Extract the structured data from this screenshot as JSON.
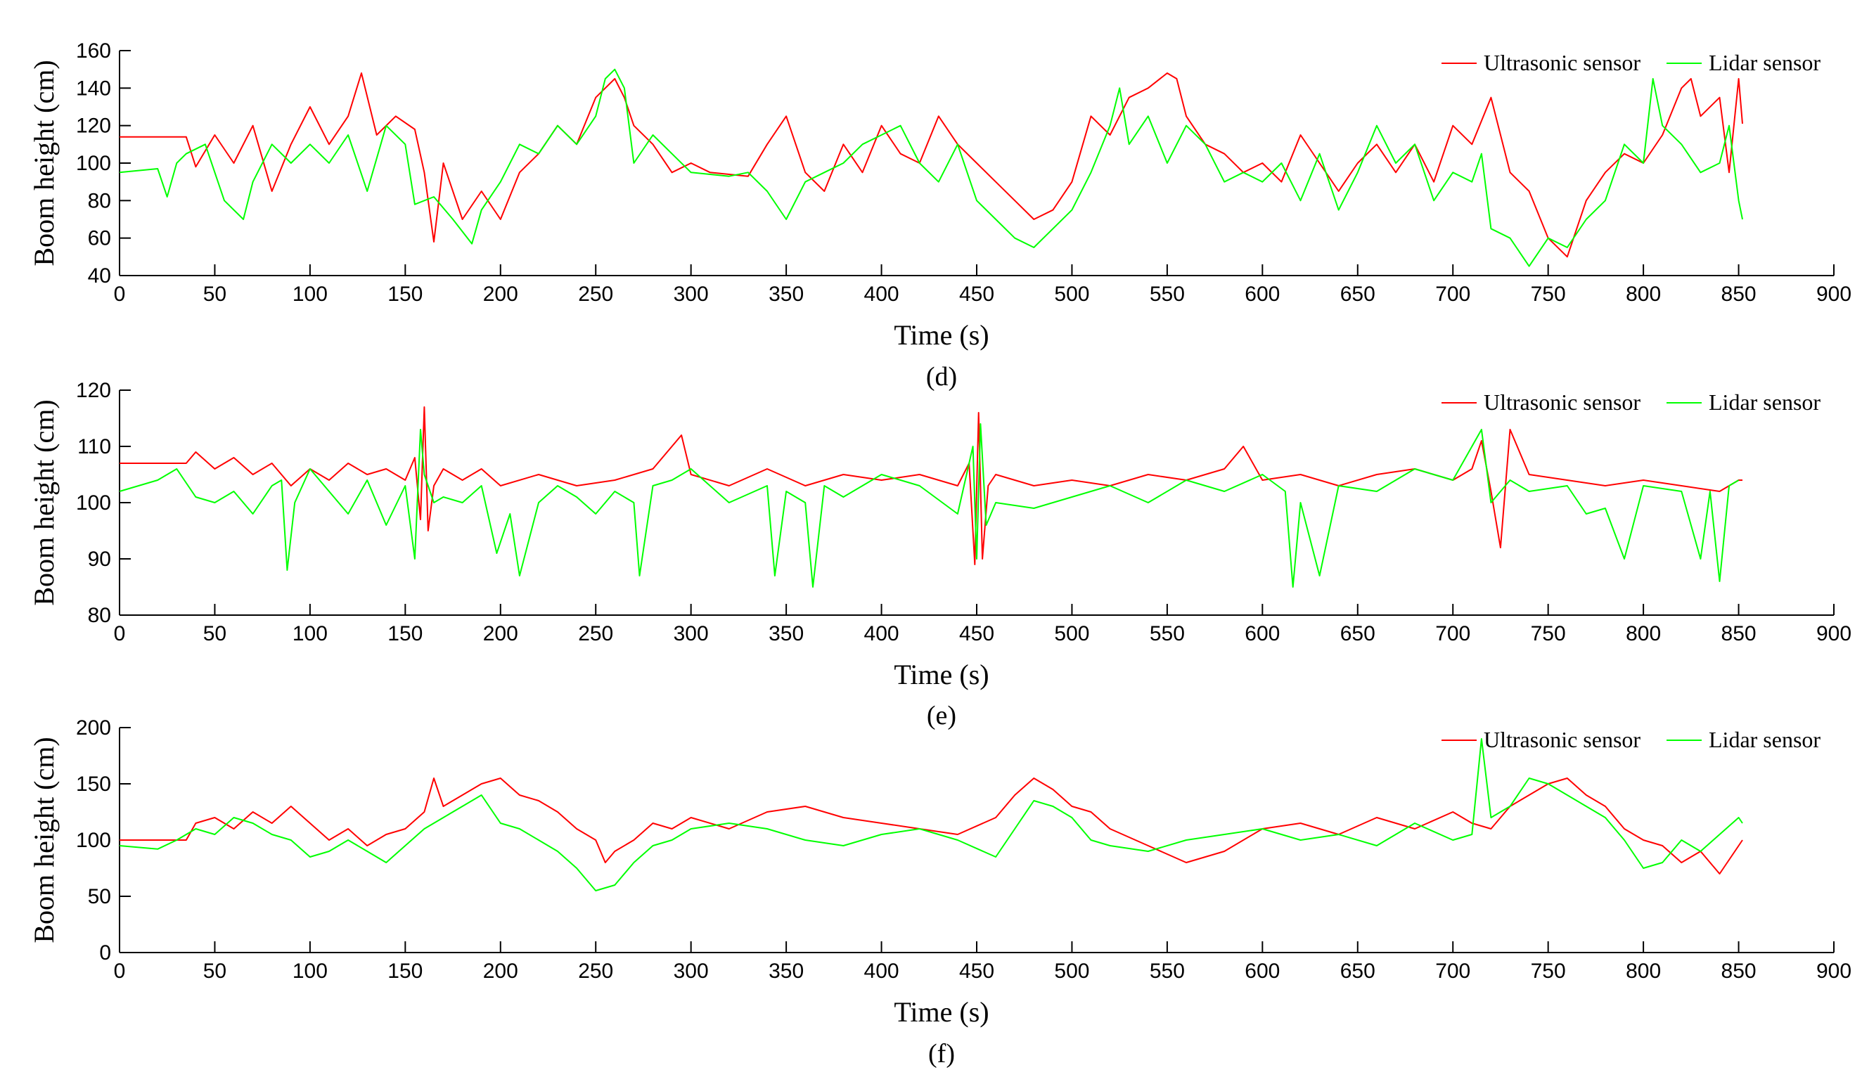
{
  "chart_data": [
    {
      "type": "line",
      "panel_label": "(d)",
      "xlabel": "Time (s)",
      "ylabel": "Boom height (cm)",
      "xlim": [
        0,
        900
      ],
      "ylim": [
        40,
        160
      ],
      "xticks": [
        0,
        50,
        100,
        150,
        200,
        250,
        300,
        350,
        400,
        450,
        500,
        550,
        600,
        650,
        700,
        750,
        800,
        850,
        900
      ],
      "yticks": [
        40,
        60,
        80,
        100,
        120,
        140,
        160
      ],
      "legend_position": "top-right",
      "series": [
        {
          "name": "Ultrasonic sensor",
          "color": "#ff0000",
          "x": [
            0,
            35,
            40,
            50,
            60,
            70,
            80,
            90,
            100,
            110,
            120,
            127,
            135,
            145,
            155,
            160,
            165,
            170,
            180,
            190,
            200,
            210,
            220,
            230,
            240,
            250,
            255,
            260,
            265,
            270,
            280,
            290,
            300,
            310,
            320,
            330,
            340,
            350,
            360,
            370,
            380,
            390,
            400,
            410,
            420,
            430,
            440,
            450,
            460,
            470,
            480,
            490,
            500,
            510,
            520,
            530,
            540,
            550,
            555,
            560,
            570,
            580,
            590,
            600,
            610,
            620,
            630,
            640,
            650,
            660,
            670,
            680,
            690,
            700,
            710,
            720,
            730,
            740,
            750,
            760,
            770,
            780,
            790,
            800,
            810,
            820,
            825,
            830,
            840,
            845,
            850,
            852
          ],
          "values": [
            114,
            114,
            98,
            115,
            100,
            120,
            85,
            110,
            130,
            110,
            125,
            148,
            115,
            125,
            118,
            95,
            58,
            100,
            70,
            85,
            70,
            95,
            105,
            120,
            110,
            135,
            140,
            145,
            135,
            120,
            110,
            95,
            100,
            95,
            94,
            93,
            110,
            125,
            95,
            85,
            110,
            95,
            120,
            105,
            100,
            125,
            110,
            100,
            90,
            80,
            70,
            75,
            90,
            125,
            115,
            135,
            140,
            148,
            145,
            125,
            110,
            105,
            95,
            100,
            90,
            115,
            100,
            85,
            100,
            110,
            95,
            110,
            90,
            120,
            110,
            135,
            95,
            85,
            60,
            50,
            80,
            95,
            105,
            100,
            115,
            140,
            145,
            125,
            135,
            95,
            145,
            121
          ]
        },
        {
          "name": "Lidar sensor",
          "color": "#00ff00",
          "x": [
            0,
            20,
            25,
            30,
            35,
            45,
            55,
            65,
            70,
            80,
            90,
            100,
            110,
            120,
            130,
            140,
            150,
            155,
            165,
            175,
            185,
            190,
            200,
            210,
            220,
            230,
            240,
            250,
            255,
            260,
            265,
            270,
            280,
            290,
            300,
            310,
            320,
            330,
            340,
            350,
            360,
            370,
            380,
            390,
            400,
            410,
            420,
            430,
            440,
            450,
            460,
            470,
            480,
            490,
            500,
            510,
            520,
            525,
            530,
            540,
            550,
            560,
            570,
            580,
            590,
            600,
            610,
            620,
            630,
            640,
            650,
            660,
            670,
            680,
            690,
            700,
            710,
            715,
            720,
            730,
            740,
            750,
            760,
            770,
            780,
            790,
            800,
            805,
            810,
            820,
            830,
            840,
            845,
            850,
            852
          ],
          "values": [
            95,
            97,
            82,
            100,
            105,
            110,
            80,
            70,
            90,
            110,
            100,
            110,
            100,
            115,
            85,
            120,
            110,
            78,
            82,
            70,
            57,
            75,
            90,
            110,
            105,
            120,
            110,
            125,
            145,
            150,
            140,
            100,
            115,
            105,
            95,
            94,
            93,
            95,
            85,
            70,
            90,
            95,
            100,
            110,
            115,
            120,
            100,
            90,
            110,
            80,
            70,
            60,
            55,
            65,
            75,
            95,
            120,
            140,
            110,
            125,
            100,
            120,
            110,
            90,
            95,
            90,
            100,
            80,
            105,
            75,
            95,
            120,
            100,
            110,
            80,
            95,
            90,
            105,
            65,
            60,
            45,
            60,
            55,
            70,
            80,
            110,
            100,
            145,
            120,
            110,
            95,
            100,
            120,
            80,
            70
          ]
        }
      ]
    },
    {
      "type": "line",
      "panel_label": "(e)",
      "xlabel": "Time (s)",
      "ylabel": "Boom height (cm)",
      "xlim": [
        0,
        900
      ],
      "ylim": [
        80,
        120
      ],
      "xticks": [
        0,
        50,
        100,
        150,
        200,
        250,
        300,
        350,
        400,
        450,
        500,
        550,
        600,
        650,
        700,
        750,
        800,
        850,
        900
      ],
      "yticks": [
        80,
        90,
        100,
        110,
        120
      ],
      "legend_position": "top-right",
      "series": [
        {
          "name": "Ultrasonic sensor",
          "color": "#ff0000",
          "x": [
            0,
            35,
            40,
            50,
            60,
            70,
            80,
            90,
            100,
            110,
            120,
            130,
            140,
            150,
            155,
            158,
            160,
            162,
            165,
            170,
            180,
            190,
            200,
            220,
            240,
            260,
            280,
            295,
            300,
            320,
            340,
            360,
            380,
            400,
            420,
            440,
            446,
            449,
            451,
            453,
            456,
            460,
            480,
            500,
            520,
            540,
            560,
            580,
            590,
            600,
            620,
            640,
            660,
            680,
            700,
            710,
            715,
            720,
            725,
            730,
            740,
            760,
            780,
            800,
            820,
            840,
            850,
            852
          ],
          "values": [
            107,
            107,
            109,
            106,
            108,
            105,
            107,
            103,
            106,
            104,
            107,
            105,
            106,
            104,
            108,
            97,
            117,
            95,
            103,
            106,
            104,
            106,
            103,
            105,
            103,
            104,
            106,
            112,
            105,
            103,
            106,
            103,
            105,
            104,
            105,
            103,
            107,
            89,
            116,
            90,
            103,
            105,
            103,
            104,
            103,
            105,
            104,
            106,
            110,
            104,
            105,
            103,
            105,
            106,
            104,
            106,
            111,
            102,
            92,
            113,
            105,
            104,
            103,
            104,
            103,
            102,
            104,
            104
          ]
        },
        {
          "name": "Lidar sensor",
          "color": "#00ff00",
          "x": [
            0,
            10,
            20,
            30,
            40,
            50,
            60,
            70,
            80,
            85,
            88,
            92,
            100,
            110,
            120,
            130,
            140,
            150,
            155,
            158,
            160,
            165,
            170,
            180,
            190,
            198,
            205,
            210,
            220,
            230,
            240,
            250,
            260,
            270,
            273,
            280,
            290,
            300,
            320,
            340,
            344,
            350,
            360,
            364,
            370,
            380,
            400,
            420,
            440,
            448,
            450,
            452,
            455,
            460,
            480,
            500,
            520,
            540,
            560,
            580,
            600,
            612,
            616,
            620,
            630,
            640,
            660,
            680,
            700,
            710,
            715,
            720,
            730,
            740,
            760,
            770,
            780,
            790,
            800,
            820,
            830,
            835,
            840,
            845,
            850
          ],
          "values": [
            102,
            103,
            104,
            106,
            101,
            100,
            102,
            98,
            103,
            104,
            88,
            100,
            106,
            102,
            98,
            104,
            96,
            103,
            90,
            113,
            105,
            100,
            101,
            100,
            103,
            91,
            98,
            87,
            100,
            103,
            101,
            98,
            102,
            100,
            87,
            103,
            104,
            106,
            100,
            103,
            87,
            102,
            100,
            85,
            103,
            101,
            105,
            103,
            98,
            110,
            90,
            114,
            96,
            100,
            99,
            101,
            103,
            100,
            104,
            102,
            105,
            102,
            85,
            100,
            87,
            103,
            102,
            106,
            104,
            110,
            113,
            100,
            104,
            102,
            103,
            98,
            99,
            90,
            103,
            102,
            90,
            102,
            86,
            103,
            104
          ]
        }
      ]
    },
    {
      "type": "line",
      "panel_label": "(f)",
      "xlabel": "Time (s)",
      "ylabel": "Boom height (cm)",
      "xlim": [
        0,
        900
      ],
      "ylim": [
        0,
        200
      ],
      "xticks": [
        0,
        50,
        100,
        150,
        200,
        250,
        300,
        350,
        400,
        450,
        500,
        550,
        600,
        650,
        700,
        750,
        800,
        850,
        900
      ],
      "yticks": [
        0,
        50,
        100,
        150,
        200
      ],
      "legend_position": "top-right",
      "series": [
        {
          "name": "Ultrasonic sensor",
          "color": "#ff0000",
          "x": [
            0,
            35,
            40,
            50,
            60,
            70,
            80,
            90,
            100,
            110,
            120,
            130,
            140,
            150,
            160,
            165,
            170,
            180,
            190,
            200,
            210,
            220,
            230,
            240,
            250,
            255,
            260,
            270,
            280,
            290,
            300,
            320,
            340,
            360,
            380,
            400,
            420,
            440,
            460,
            470,
            480,
            490,
            500,
            510,
            520,
            540,
            560,
            580,
            600,
            620,
            640,
            660,
            680,
            700,
            710,
            720,
            730,
            740,
            750,
            760,
            770,
            780,
            790,
            800,
            810,
            820,
            830,
            840,
            850,
            852
          ],
          "values": [
            100,
            100,
            115,
            120,
            110,
            125,
            115,
            130,
            115,
            100,
            110,
            95,
            105,
            110,
            125,
            155,
            130,
            140,
            150,
            155,
            140,
            135,
            125,
            110,
            100,
            80,
            90,
            100,
            115,
            110,
            120,
            110,
            125,
            130,
            120,
            115,
            110,
            105,
            120,
            140,
            155,
            145,
            130,
            125,
            110,
            95,
            80,
            90,
            110,
            115,
            105,
            120,
            110,
            125,
            115,
            110,
            130,
            140,
            150,
            155,
            140,
            130,
            110,
            100,
            95,
            80,
            90,
            70,
            95,
            100
          ]
        },
        {
          "name": "Lidar sensor",
          "color": "#00ff00",
          "x": [
            0,
            20,
            30,
            40,
            50,
            60,
            70,
            80,
            90,
            100,
            110,
            120,
            130,
            140,
            150,
            160,
            170,
            180,
            190,
            200,
            210,
            220,
            230,
            240,
            250,
            260,
            270,
            280,
            290,
            300,
            320,
            340,
            360,
            380,
            400,
            420,
            440,
            460,
            470,
            480,
            490,
            500,
            510,
            520,
            540,
            560,
            580,
            600,
            620,
            640,
            660,
            680,
            700,
            710,
            715,
            720,
            730,
            740,
            750,
            760,
            770,
            780,
            790,
            800,
            810,
            820,
            830,
            840,
            850,
            852
          ],
          "values": [
            95,
            92,
            100,
            110,
            105,
            120,
            115,
            105,
            100,
            85,
            90,
            100,
            90,
            80,
            95,
            110,
            120,
            130,
            140,
            115,
            110,
            100,
            90,
            75,
            55,
            60,
            80,
            95,
            100,
            110,
            115,
            110,
            100,
            95,
            105,
            110,
            100,
            85,
            110,
            135,
            130,
            120,
            100,
            95,
            90,
            100,
            105,
            110,
            100,
            105,
            95,
            115,
            100,
            105,
            190,
            120,
            130,
            155,
            150,
            140,
            130,
            120,
            100,
            75,
            80,
            100,
            90,
            105,
            120,
            115
          ]
        }
      ]
    }
  ]
}
